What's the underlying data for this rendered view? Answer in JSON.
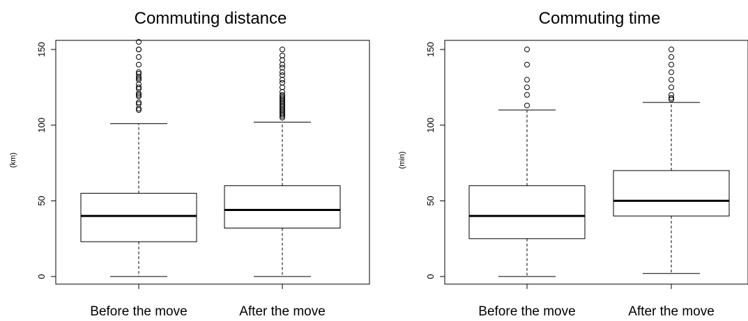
{
  "chart_data": [
    {
      "type": "box",
      "title": "Commuting distance",
      "ylabel": "(km)",
      "ylim": [
        -5,
        156
      ],
      "yticks": [
        0,
        50,
        100,
        150
      ],
      "categories": [
        "Before the move",
        "After the move"
      ],
      "boxes": [
        {
          "min": 0,
          "q1": 23,
          "median": 40,
          "q3": 55,
          "max": 101,
          "outliers": [
            110,
            111,
            114,
            115,
            119,
            120,
            121,
            124,
            125,
            127,
            130,
            131,
            132,
            134,
            135,
            140,
            145,
            150,
            150,
            155
          ]
        },
        {
          "min": 0,
          "q1": 32,
          "median": 44,
          "q3": 60,
          "max": 102,
          "outliers": [
            105,
            106,
            107,
            108,
            109,
            110,
            111,
            112,
            113,
            114,
            115,
            116,
            117,
            118,
            119,
            120,
            122,
            125,
            128,
            130,
            133,
            135,
            138,
            140,
            143,
            146,
            150
          ]
        }
      ]
    },
    {
      "type": "box",
      "title": "Commuting time",
      "ylabel": "(min)",
      "ylim": [
        -5,
        156
      ],
      "yticks": [
        0,
        50,
        100,
        150
      ],
      "categories": [
        "Before the move",
        "After the move"
      ],
      "boxes": [
        {
          "min": 0,
          "q1": 25,
          "median": 40,
          "q3": 60,
          "max": 110,
          "outliers": [
            113,
            120,
            125,
            130,
            140,
            150
          ]
        },
        {
          "min": 2,
          "q1": 40,
          "median": 50,
          "q3": 70,
          "max": 115,
          "outliers": [
            117,
            118,
            120,
            125,
            130,
            135,
            140,
            145,
            150
          ]
        }
      ]
    }
  ]
}
